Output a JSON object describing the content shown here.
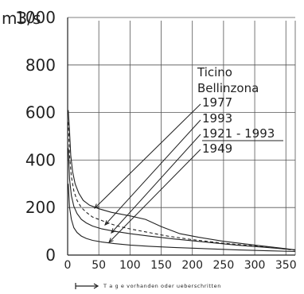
{
  "chart_data": {
    "type": "line",
    "ylabel": "m3/s",
    "xlabel": "T a g e   vorhanden oder ueberschritten",
    "xlim": [
      0,
      365
    ],
    "ylim": [
      0,
      1000
    ],
    "xticks": [
      "0",
      "50",
      "100",
      "150",
      "200",
      "250",
      "300",
      "350"
    ],
    "yticks": [
      "0",
      "200",
      "400",
      "600",
      "800",
      "1000"
    ],
    "grid": true,
    "annotation": {
      "title_lines": [
        "Ticino",
        "Bellinzona"
      ],
      "labels": [
        "1977",
        "1993",
        "1921 - 1993",
        "1949"
      ]
    },
    "series": [
      {
        "name": "1977",
        "style": "solid",
        "x": [
          1,
          3,
          5,
          8,
          12,
          18,
          25,
          35,
          50,
          70,
          100,
          125,
          150,
          180,
          210,
          250,
          300,
          340,
          365
        ],
        "y": [
          610,
          520,
          420,
          350,
          300,
          260,
          230,
          210,
          195,
          180,
          165,
          150,
          120,
          90,
          75,
          58,
          42,
          30,
          22
        ]
      },
      {
        "name": "1993",
        "style": "dashed",
        "x": [
          1,
          3,
          6,
          10,
          15,
          22,
          30,
          40,
          50,
          65,
          80,
          100,
          130,
          160,
          200,
          250,
          300,
          340,
          365
        ],
        "y": [
          560,
          420,
          330,
          270,
          230,
          200,
          180,
          160,
          150,
          135,
          122,
          110,
          95,
          80,
          65,
          50,
          38,
          28,
          20
        ]
      },
      {
        "name": "1921 - 1993",
        "style": "solid",
        "x": [
          1,
          3,
          6,
          10,
          15,
          22,
          30,
          40,
          55,
          75,
          100,
          130,
          170,
          220,
          270,
          320,
          365
        ],
        "y": [
          450,
          320,
          250,
          205,
          175,
          150,
          135,
          122,
          110,
          100,
          90,
          80,
          68,
          55,
          42,
          32,
          22
        ]
      },
      {
        "name": "1949",
        "style": "solid",
        "x": [
          1,
          3,
          6,
          10,
          15,
          22,
          30,
          40,
          55,
          75,
          100,
          130,
          170,
          220,
          270,
          320,
          365
        ],
        "y": [
          300,
          200,
          150,
          115,
          95,
          80,
          70,
          62,
          55,
          48,
          42,
          37,
          32,
          27,
          22,
          18,
          15
        ]
      }
    ]
  }
}
